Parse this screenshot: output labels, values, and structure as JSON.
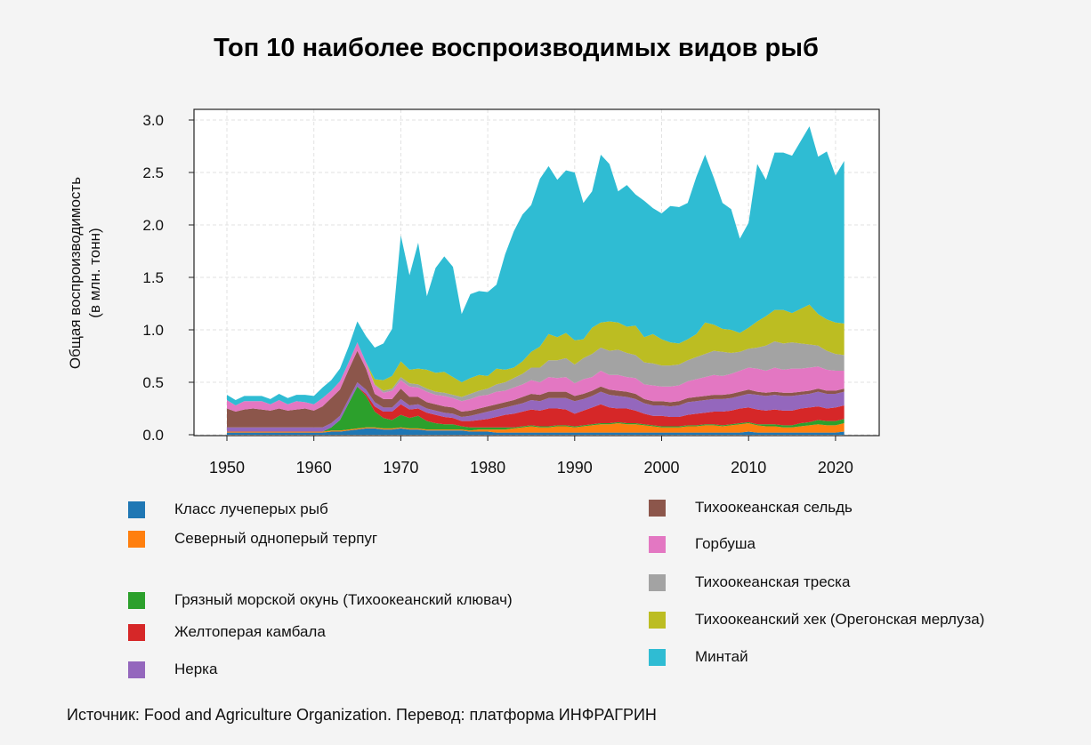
{
  "title": "Топ 10 наиболее воспроизводимых видов рыб",
  "source": "Источник: Food and Agriculture Organization. Перевод:  платформа ИНФРАГРИН",
  "chart_data": {
    "type": "area",
    "stacked": true,
    "title": "Топ 10 наиболее воспроизводимых видов рыб",
    "ylabel_lines": [
      "Общая воспроизводимость",
      "(в млн. тонн)"
    ],
    "xlabel": "",
    "xlim": [
      1944,
      2026
    ],
    "ylim": [
      0,
      3.0
    ],
    "x_ticks": [
      1950,
      1960,
      1970,
      1980,
      1990,
      2000,
      2010,
      2020
    ],
    "y_ticks": [
      "0.0",
      "0.5",
      "1.0",
      "1.5",
      "2.0",
      "2.5",
      "3.0"
    ],
    "grid": true,
    "legend_position": "bottom",
    "x": [
      1950,
      1951,
      1952,
      1953,
      1954,
      1955,
      1956,
      1957,
      1958,
      1959,
      1960,
      1961,
      1962,
      1963,
      1964,
      1965,
      1966,
      1967,
      1968,
      1969,
      1970,
      1971,
      1972,
      1973,
      1974,
      1975,
      1976,
      1977,
      1978,
      1979,
      1980,
      1981,
      1982,
      1983,
      1984,
      1985,
      1986,
      1987,
      1988,
      1989,
      1990,
      1991,
      1992,
      1993,
      1994,
      1995,
      1996,
      1997,
      1998,
      1999,
      2000,
      2001,
      2002,
      2003,
      2004,
      2005,
      2006,
      2007,
      2008,
      2009,
      2010,
      2011,
      2012,
      2013,
      2014,
      2015,
      2016,
      2017,
      2018,
      2019,
      2020,
      2021
    ],
    "series": [
      {
        "name": "Класс лучеперых рыб",
        "color": "#1f77b4",
        "values": [
          0.02,
          0.02,
          0.02,
          0.02,
          0.02,
          0.02,
          0.02,
          0.02,
          0.02,
          0.02,
          0.02,
          0.02,
          0.03,
          0.03,
          0.04,
          0.05,
          0.06,
          0.06,
          0.05,
          0.05,
          0.06,
          0.05,
          0.05,
          0.04,
          0.04,
          0.04,
          0.04,
          0.04,
          0.03,
          0.03,
          0.03,
          0.02,
          0.02,
          0.02,
          0.02,
          0.02,
          0.02,
          0.02,
          0.02,
          0.02,
          0.02,
          0.02,
          0.02,
          0.02,
          0.02,
          0.02,
          0.02,
          0.02,
          0.02,
          0.02,
          0.02,
          0.02,
          0.02,
          0.02,
          0.02,
          0.02,
          0.02,
          0.02,
          0.02,
          0.02,
          0.03,
          0.02,
          0.02,
          0.02,
          0.02,
          0.02,
          0.02,
          0.02,
          0.02,
          0.02,
          0.02,
          0.03
        ]
      },
      {
        "name": "Северный одноперый терпуг",
        "color": "#ff7f0e",
        "values": [
          0.01,
          0.01,
          0.01,
          0.01,
          0.01,
          0.01,
          0.01,
          0.01,
          0.01,
          0.01,
          0.01,
          0.01,
          0.01,
          0.01,
          0.01,
          0.01,
          0.01,
          0.01,
          0.01,
          0.01,
          0.01,
          0.01,
          0.01,
          0.01,
          0.01,
          0.01,
          0.01,
          0.01,
          0.01,
          0.02,
          0.02,
          0.03,
          0.03,
          0.04,
          0.05,
          0.06,
          0.05,
          0.05,
          0.06,
          0.06,
          0.05,
          0.06,
          0.07,
          0.08,
          0.08,
          0.09,
          0.08,
          0.08,
          0.07,
          0.06,
          0.05,
          0.05,
          0.05,
          0.06,
          0.06,
          0.07,
          0.07,
          0.06,
          0.07,
          0.08,
          0.08,
          0.07,
          0.06,
          0.06,
          0.05,
          0.05,
          0.06,
          0.07,
          0.08,
          0.07,
          0.07,
          0.08
        ]
      },
      {
        "name": "Грязный морской окунь (Тихоокеанский клювач)",
        "color": "#2ca02c",
        "values": [
          0.0,
          0.0,
          0.0,
          0.0,
          0.0,
          0.0,
          0.0,
          0.0,
          0.0,
          0.0,
          0.0,
          0.0,
          0.03,
          0.1,
          0.25,
          0.4,
          0.3,
          0.15,
          0.1,
          0.08,
          0.12,
          0.1,
          0.12,
          0.08,
          0.06,
          0.05,
          0.05,
          0.03,
          0.03,
          0.02,
          0.02,
          0.02,
          0.02,
          0.01,
          0.01,
          0.01,
          0.01,
          0.01,
          0.01,
          0.01,
          0.01,
          0.01,
          0.01,
          0.01,
          0.01,
          0.01,
          0.01,
          0.01,
          0.01,
          0.01,
          0.01,
          0.01,
          0.01,
          0.01,
          0.01,
          0.01,
          0.01,
          0.01,
          0.01,
          0.01,
          0.01,
          0.01,
          0.02,
          0.02,
          0.02,
          0.02,
          0.03,
          0.03,
          0.04,
          0.04,
          0.04,
          0.04
        ]
      },
      {
        "name": "Желтоперая камбала",
        "color": "#d62728",
        "values": [
          0.0,
          0.0,
          0.0,
          0.0,
          0.0,
          0.0,
          0.0,
          0.0,
          0.0,
          0.0,
          0.0,
          0.0,
          0.0,
          0.0,
          0.0,
          0.0,
          0.02,
          0.05,
          0.06,
          0.08,
          0.1,
          0.08,
          0.07,
          0.08,
          0.08,
          0.07,
          0.06,
          0.05,
          0.06,
          0.07,
          0.08,
          0.1,
          0.12,
          0.13,
          0.14,
          0.15,
          0.15,
          0.17,
          0.16,
          0.15,
          0.12,
          0.14,
          0.16,
          0.18,
          0.15,
          0.13,
          0.14,
          0.12,
          0.1,
          0.09,
          0.1,
          0.09,
          0.09,
          0.1,
          0.11,
          0.11,
          0.12,
          0.13,
          0.13,
          0.14,
          0.14,
          0.14,
          0.13,
          0.14,
          0.14,
          0.14,
          0.14,
          0.14,
          0.13,
          0.12,
          0.13,
          0.13
        ]
      },
      {
        "name": "Нерка",
        "color": "#9467bd",
        "values": [
          0.04,
          0.04,
          0.04,
          0.04,
          0.04,
          0.04,
          0.04,
          0.04,
          0.04,
          0.04,
          0.04,
          0.04,
          0.04,
          0.04,
          0.04,
          0.04,
          0.04,
          0.04,
          0.04,
          0.04,
          0.05,
          0.04,
          0.04,
          0.04,
          0.04,
          0.04,
          0.04,
          0.04,
          0.05,
          0.06,
          0.07,
          0.07,
          0.07,
          0.08,
          0.08,
          0.09,
          0.09,
          0.1,
          0.1,
          0.11,
          0.12,
          0.11,
          0.11,
          0.12,
          0.12,
          0.12,
          0.11,
          0.11,
          0.1,
          0.1,
          0.1,
          0.1,
          0.11,
          0.12,
          0.12,
          0.12,
          0.12,
          0.12,
          0.12,
          0.12,
          0.13,
          0.14,
          0.14,
          0.14,
          0.14,
          0.14,
          0.13,
          0.13,
          0.14,
          0.14,
          0.13,
          0.13
        ]
      },
      {
        "name": "Тихоокеанская сельдь",
        "color": "#8c564b",
        "values": [
          0.18,
          0.15,
          0.17,
          0.18,
          0.17,
          0.16,
          0.18,
          0.16,
          0.17,
          0.18,
          0.16,
          0.2,
          0.24,
          0.25,
          0.28,
          0.3,
          0.2,
          0.08,
          0.08,
          0.08,
          0.1,
          0.08,
          0.07,
          0.06,
          0.06,
          0.06,
          0.06,
          0.05,
          0.05,
          0.05,
          0.05,
          0.05,
          0.05,
          0.05,
          0.06,
          0.06,
          0.06,
          0.06,
          0.06,
          0.06,
          0.05,
          0.05,
          0.05,
          0.05,
          0.05,
          0.05,
          0.05,
          0.05,
          0.04,
          0.04,
          0.04,
          0.04,
          0.04,
          0.04,
          0.04,
          0.04,
          0.04,
          0.04,
          0.04,
          0.04,
          0.04,
          0.03,
          0.03,
          0.03,
          0.03,
          0.03,
          0.03,
          0.03,
          0.03,
          0.03,
          0.03,
          0.03
        ]
      },
      {
        "name": "Горбуша",
        "color": "#e377c2",
        "values": [
          0.08,
          0.06,
          0.08,
          0.07,
          0.08,
          0.06,
          0.08,
          0.06,
          0.08,
          0.06,
          0.06,
          0.08,
          0.07,
          0.08,
          0.07,
          0.08,
          0.06,
          0.08,
          0.06,
          0.08,
          0.08,
          0.1,
          0.09,
          0.1,
          0.09,
          0.1,
          0.09,
          0.1,
          0.11,
          0.12,
          0.11,
          0.12,
          0.11,
          0.12,
          0.12,
          0.13,
          0.12,
          0.14,
          0.13,
          0.14,
          0.12,
          0.14,
          0.13,
          0.15,
          0.14,
          0.15,
          0.14,
          0.15,
          0.14,
          0.15,
          0.14,
          0.15,
          0.15,
          0.16,
          0.17,
          0.18,
          0.19,
          0.18,
          0.19,
          0.2,
          0.21,
          0.22,
          0.21,
          0.23,
          0.22,
          0.23,
          0.22,
          0.22,
          0.21,
          0.2,
          0.19,
          0.17
        ]
      },
      {
        "name": "Тихоокеанская треска",
        "color": "#a3a3a3",
        "values": [
          0.0,
          0.0,
          0.0,
          0.0,
          0.0,
          0.0,
          0.0,
          0.0,
          0.0,
          0.0,
          0.0,
          0.0,
          0.0,
          0.0,
          0.0,
          0.0,
          0.0,
          0.01,
          0.02,
          0.02,
          0.03,
          0.03,
          0.03,
          0.03,
          0.03,
          0.03,
          0.03,
          0.04,
          0.05,
          0.05,
          0.06,
          0.07,
          0.08,
          0.09,
          0.1,
          0.12,
          0.14,
          0.16,
          0.17,
          0.18,
          0.18,
          0.2,
          0.22,
          0.22,
          0.23,
          0.24,
          0.23,
          0.22,
          0.21,
          0.21,
          0.2,
          0.2,
          0.2,
          0.2,
          0.21,
          0.22,
          0.23,
          0.23,
          0.2,
          0.18,
          0.18,
          0.2,
          0.24,
          0.25,
          0.25,
          0.25,
          0.24,
          0.22,
          0.2,
          0.18,
          0.16,
          0.15
        ]
      },
      {
        "name": "Тихоокеанский хек (Орегонская мерлуза)",
        "color": "#bcbd22",
        "values": [
          0.0,
          0.0,
          0.0,
          0.0,
          0.0,
          0.0,
          0.0,
          0.0,
          0.0,
          0.0,
          0.0,
          0.0,
          0.0,
          0.0,
          0.0,
          0.0,
          0.0,
          0.05,
          0.1,
          0.12,
          0.15,
          0.13,
          0.15,
          0.18,
          0.18,
          0.2,
          0.17,
          0.14,
          0.15,
          0.15,
          0.12,
          0.15,
          0.12,
          0.1,
          0.12,
          0.15,
          0.2,
          0.25,
          0.22,
          0.24,
          0.23,
          0.18,
          0.25,
          0.24,
          0.28,
          0.26,
          0.25,
          0.28,
          0.24,
          0.28,
          0.25,
          0.22,
          0.2,
          0.2,
          0.22,
          0.3,
          0.25,
          0.22,
          0.22,
          0.18,
          0.2,
          0.25,
          0.28,
          0.3,
          0.32,
          0.28,
          0.33,
          0.38,
          0.3,
          0.3,
          0.3,
          0.3
        ]
      },
      {
        "name": "Минтай",
        "color": "#2fbcd3",
        "values": [
          0.05,
          0.05,
          0.05,
          0.05,
          0.05,
          0.05,
          0.06,
          0.06,
          0.06,
          0.07,
          0.08,
          0.1,
          0.1,
          0.12,
          0.15,
          0.2,
          0.25,
          0.3,
          0.35,
          0.45,
          1.2,
          0.9,
          1.2,
          0.7,
          1.0,
          1.1,
          1.05,
          0.65,
          0.8,
          0.8,
          0.8,
          0.8,
          1.1,
          1.3,
          1.4,
          1.4,
          1.6,
          1.6,
          1.5,
          1.55,
          1.6,
          1.3,
          1.3,
          1.6,
          1.5,
          1.25,
          1.35,
          1.25,
          1.3,
          1.2,
          1.2,
          1.3,
          1.3,
          1.3,
          1.5,
          1.6,
          1.4,
          1.2,
          1.15,
          0.9,
          1.0,
          1.5,
          1.3,
          1.5,
          1.5,
          1.5,
          1.6,
          1.7,
          1.5,
          1.6,
          1.4,
          1.55
        ]
      }
    ]
  }
}
